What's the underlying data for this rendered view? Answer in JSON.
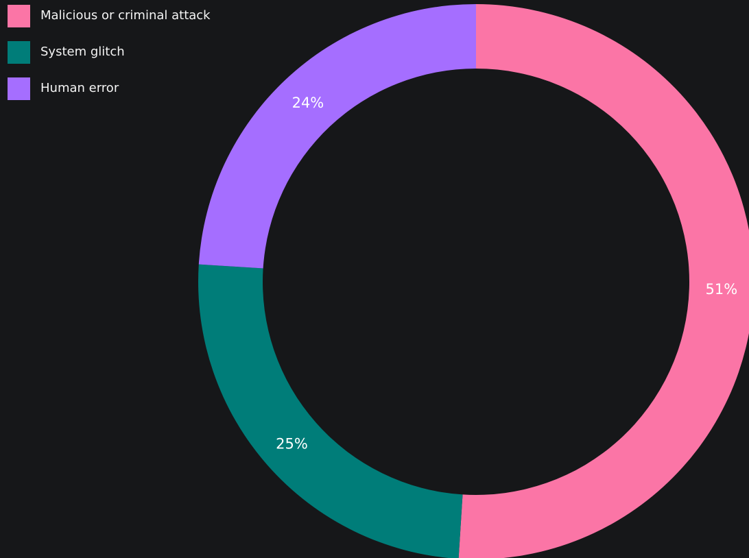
{
  "chart_data": {
    "type": "pie",
    "variant": "donut",
    "title": "",
    "legend_position": "top-left",
    "categories": [
      "Malicious or criminal attack",
      "System glitch",
      "Human error"
    ],
    "values": [
      51,
      25,
      24
    ],
    "labels": [
      "51%",
      "25%",
      "24%"
    ],
    "colors": [
      "#fb75a6",
      "#007d79",
      "#a56eff"
    ]
  },
  "background": "#161719"
}
